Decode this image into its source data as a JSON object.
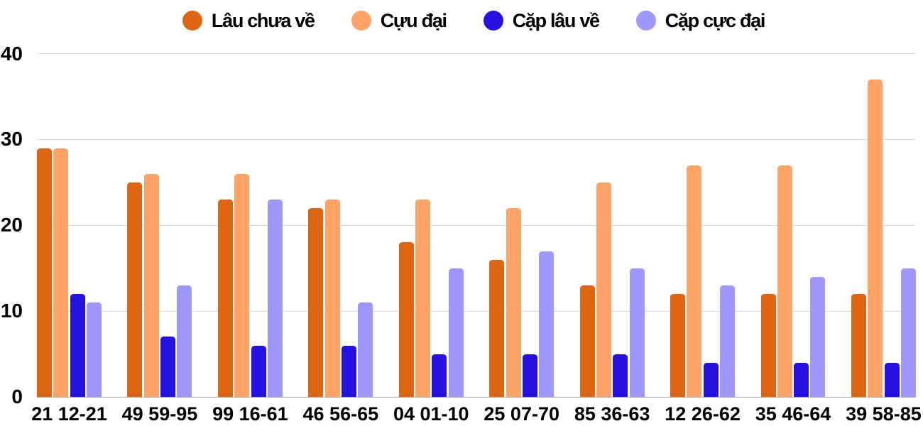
{
  "chart_data": {
    "type": "bar",
    "title": "",
    "categories": [
      "21 12-21",
      "49 59-95",
      "99 16-61",
      "46 56-65",
      "04 01-10",
      "25 07-70",
      "85 36-63",
      "12 26-62",
      "35 46-64",
      "39 58-85"
    ],
    "series": [
      {
        "name": "Lâu chưa về",
        "color": "#dd6613",
        "values": [
          29,
          25,
          23,
          22,
          18,
          16,
          13,
          12,
          12,
          12
        ]
      },
      {
        "name": "Cựu đại",
        "color": "#ffa369",
        "values": [
          29,
          26,
          26,
          23,
          23,
          22,
          25,
          27,
          27,
          37
        ]
      },
      {
        "name": "Cặp lâu về",
        "color": "#2412df",
        "values": [
          12,
          7,
          6,
          6,
          5,
          5,
          5,
          4,
          4,
          4
        ]
      },
      {
        "name": "Cặp cực đại",
        "color": "#9e97fe",
        "values": [
          11,
          13,
          23,
          11,
          15,
          17,
          15,
          13,
          14,
          15
        ]
      }
    ],
    "xlabel": "",
    "ylabel": "",
    "ylim": [
      0,
      40
    ],
    "yticks": [
      0,
      10,
      20,
      30,
      40
    ],
    "grid": true,
    "legend_position": "top",
    "gridline_color": "#dcdcdc",
    "baseline_color": "#ababab",
    "text_color": "#000000",
    "background_color": "#ffffff"
  }
}
